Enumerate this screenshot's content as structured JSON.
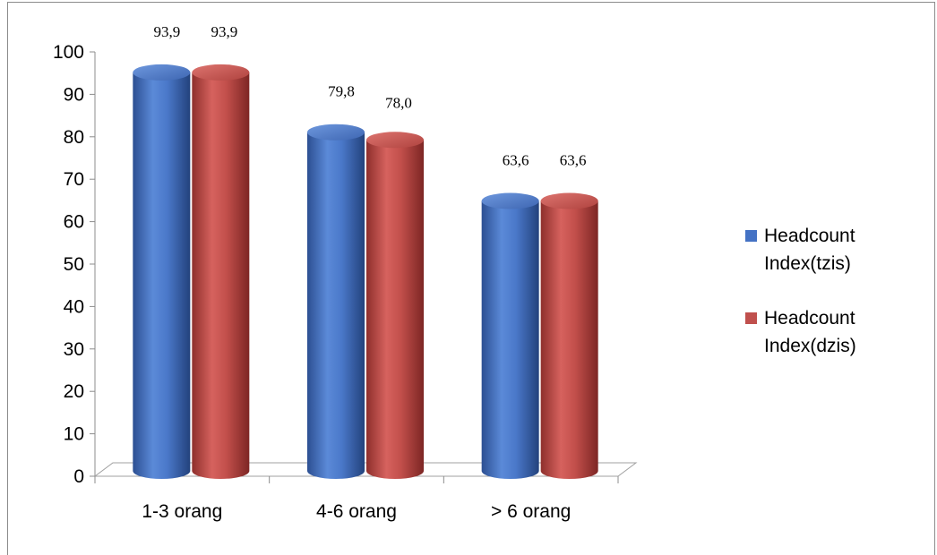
{
  "chart_data": {
    "type": "bar",
    "style": "3d-cylinder",
    "categories": [
      "1-3 orang",
      "4-6 orang",
      "> 6 orang"
    ],
    "series": [
      {
        "name": "Headcount Index(tzis)",
        "legend_lines": [
          "Headcount",
          "Index(tzis)"
        ],
        "values": [
          93.9,
          79.8,
          63.6
        ],
        "labels": [
          "93,9",
          "79,8",
          "63,6"
        ],
        "color": "#4472c4"
      },
      {
        "name": "Headcount Index(dzis)",
        "legend_lines": [
          "Headcount",
          "Index(dzis)"
        ],
        "values": [
          93.9,
          78.0,
          63.6
        ],
        "labels": [
          "93,9",
          "78,0",
          "63,6"
        ],
        "color": "#c0504d"
      }
    ],
    "yticks": [
      "0",
      "10",
      "20",
      "30",
      "40",
      "50",
      "60",
      "70",
      "80",
      "90",
      "100"
    ],
    "ylim": [
      0,
      100
    ],
    "grid": false,
    "legend": "right"
  }
}
